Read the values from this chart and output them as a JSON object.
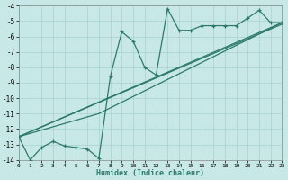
{
  "xlabel": "Humidex (Indice chaleur)",
  "bg_color": "#c8e8e8",
  "grid_color": "#a8d0d0",
  "line_color": "#2d7a6a",
  "xlim": [
    0,
    23
  ],
  "ylim": [
    -14,
    -4
  ],
  "xtick_labels": [
    "0",
    "1",
    "2",
    "3",
    "4",
    "5",
    "6",
    "7",
    "8",
    "9",
    "10",
    "11",
    "12",
    "13",
    "14",
    "15",
    "16",
    "17",
    "18",
    "19",
    "20",
    "21",
    "22",
    "23"
  ],
  "xticks": [
    0,
    1,
    2,
    3,
    4,
    5,
    6,
    7,
    8,
    9,
    10,
    11,
    12,
    13,
    14,
    15,
    16,
    17,
    18,
    19,
    20,
    21,
    22,
    23
  ],
  "yticks": [
    -4,
    -5,
    -6,
    -7,
    -8,
    -9,
    -10,
    -11,
    -12,
    -13,
    -14
  ],
  "series1_x": [
    0,
    1,
    2,
    3,
    4,
    5,
    6,
    7,
    8,
    9,
    10,
    11,
    12,
    13,
    14,
    15,
    16,
    17,
    18,
    19,
    20,
    21,
    22,
    23
  ],
  "series1_y": [
    -12.5,
    -14.0,
    -13.2,
    -12.8,
    -13.1,
    -13.2,
    -13.3,
    -13.9,
    -8.6,
    -5.7,
    -6.3,
    -8.0,
    -8.5,
    -4.2,
    -5.6,
    -5.6,
    -5.3,
    -5.3,
    -5.3,
    -5.3,
    -4.8,
    -4.3,
    -5.1,
    -5.1
  ],
  "trend1_x": [
    0,
    23
  ],
  "trend1_y": [
    -12.5,
    -5.1
  ],
  "trend2_x": [
    0,
    23
  ],
  "trend2_y": [
    -12.5,
    -5.2
  ],
  "trend3_x": [
    0,
    7,
    23
  ],
  "trend3_y": [
    -12.5,
    -11.0,
    -5.1
  ]
}
